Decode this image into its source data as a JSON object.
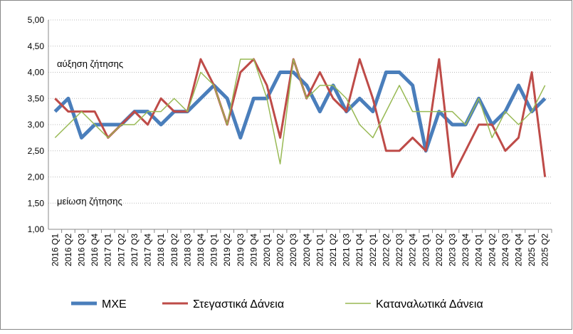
{
  "chart_data": {
    "type": "line",
    "categories": [
      "2016 Q1",
      "2016 Q2",
      "2016 Q3",
      "2016 Q4",
      "2017 Q1",
      "2017 Q2",
      "2017 Q3",
      "2017 Q4",
      "2018 Q1",
      "2018 Q2",
      "2018 Q3",
      "2018 Q4",
      "2019 Q1",
      "2019 Q2",
      "2019 Q3",
      "2019 Q4",
      "2020 Q1",
      "2020 Q2",
      "2020 Q3",
      "2020 Q4",
      "2021 Q1",
      "2021 Q2",
      "2021 Q3",
      "2021 Q4",
      "2022 Q1",
      "2022 Q2",
      "2022 Q3",
      "2022 Q4",
      "2023 Q1",
      "2023 Q2",
      "2023 Q3",
      "2023 Q4",
      "2024 Q1",
      "2024 Q2",
      "2024 Q3",
      "2024 Q4",
      "2025 Q1",
      "2025 Q2"
    ],
    "series": [
      {
        "name": "ΜΧΕ",
        "color": "#4a7ebb",
        "width": 5,
        "values": [
          3.25,
          3.5,
          2.75,
          3.0,
          3.0,
          3.0,
          3.25,
          3.25,
          3.0,
          3.25,
          3.25,
          3.5,
          3.75,
          3.5,
          2.75,
          3.5,
          3.5,
          4.0,
          4.0,
          3.75,
          3.25,
          3.75,
          3.25,
          3.5,
          3.25,
          4.0,
          4.0,
          3.75,
          2.5,
          3.25,
          3.0,
          3.0,
          3.5,
          3.0,
          3.25,
          3.75,
          3.25,
          3.5
        ]
      },
      {
        "name": "Στεγαστικά Δάνεια",
        "color": "#be4b48",
        "width": 3,
        "values": [
          3.5,
          3.25,
          3.25,
          3.25,
          2.75,
          3.0,
          3.25,
          3.0,
          3.5,
          3.25,
          3.25,
          4.25,
          3.75,
          3.0,
          4.0,
          4.25,
          3.75,
          2.75,
          4.25,
          3.5,
          4.0,
          3.5,
          3.25,
          4.25,
          3.5,
          2.5,
          2.5,
          2.75,
          2.5,
          4.25,
          2.0,
          2.5,
          3.0,
          3.0,
          2.5,
          2.75,
          4.0,
          2.0
        ]
      },
      {
        "name": "Καταναλωτικά Δάνεια",
        "color": "#98b954",
        "width": 1.5,
        "values": [
          2.75,
          3.0,
          3.25,
          3.0,
          2.75,
          3.0,
          3.0,
          3.25,
          3.25,
          3.5,
          3.25,
          4.0,
          3.75,
          3.0,
          4.25,
          4.25,
          3.5,
          2.25,
          4.25,
          3.5,
          3.75,
          3.75,
          3.5,
          3.0,
          2.75,
          3.25,
          3.75,
          3.25,
          3.25,
          3.25,
          3.25,
          3.0,
          3.5,
          2.75,
          3.25,
          3.0,
          3.25,
          3.75
        ]
      }
    ],
    "ylim": [
      1.0,
      5.0
    ],
    "yticks": [
      {
        "value": 1.0,
        "label": "1,00"
      },
      {
        "value": 1.5,
        "label": "1,50"
      },
      {
        "value": 2.0,
        "label": "2,00"
      },
      {
        "value": 2.5,
        "label": "2,50"
      },
      {
        "value": 3.0,
        "label": "3,00"
      },
      {
        "value": 3.5,
        "label": "3,50"
      },
      {
        "value": 4.0,
        "label": "4,00"
      },
      {
        "value": 4.5,
        "label": "4,50"
      },
      {
        "value": 5.0,
        "label": "5,00"
      }
    ],
    "grid": true,
    "annotations": [
      "αύξηση ζήτησης",
      "μείωση ζήτησης"
    ]
  }
}
